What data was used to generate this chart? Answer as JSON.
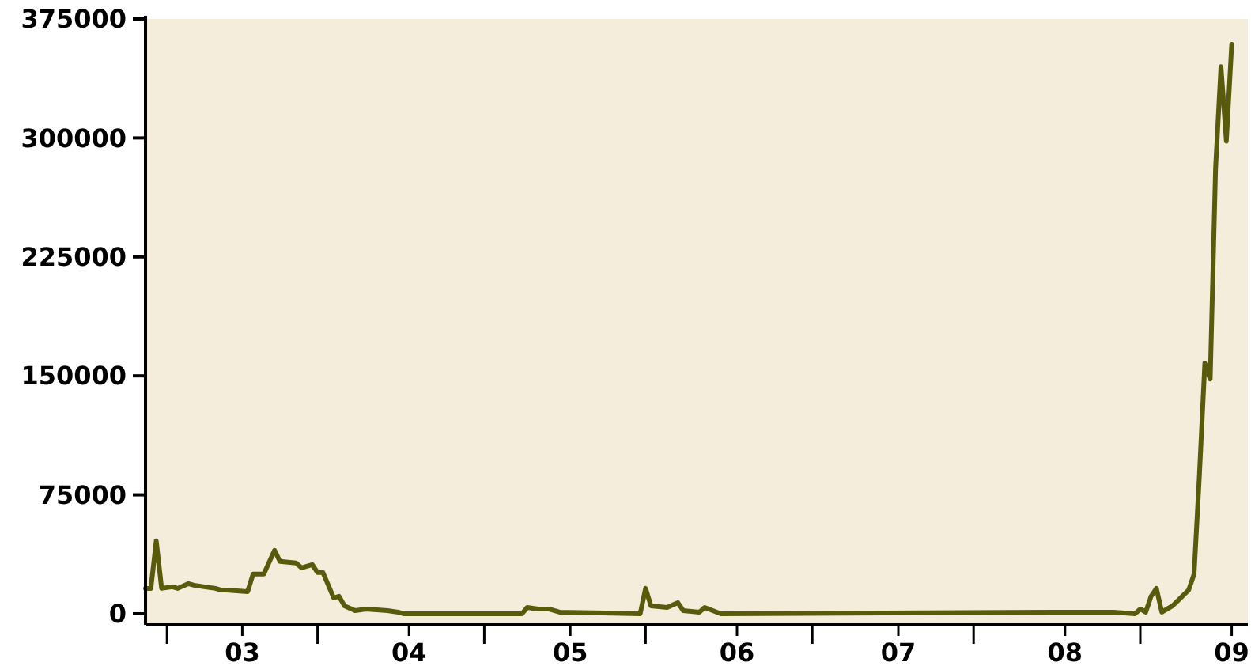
{
  "chart_data": {
    "type": "line",
    "x": [
      "--02-11",
      "--02-12",
      "--02-13",
      "--02-14",
      "--02-16",
      "--02-17",
      "--02-19",
      "--02-20",
      "--02-24",
      "--02-25",
      "--02-26",
      "--03-02",
      "--03-03",
      "--03-05",
      "--03-07",
      "--03-08",
      "--03-11",
      "--03-12",
      "--03-14",
      "--03-15",
      "--03-16",
      "--03-18",
      "--03-19",
      "--03-20",
      "--03-22",
      "--03-24",
      "--03-28",
      "--03-30",
      "--03-31",
      "--04-22",
      "--04-23",
      "--04-25",
      "--04-27",
      "--04-29",
      "--05-14",
      "--05-15",
      "--05-16",
      "--05-19",
      "--05-21",
      "--05-22",
      "--05-25",
      "--05-26",
      "--05-29",
      "--07-30",
      "--08-05",
      "--08-10",
      "--08-14",
      "--08-15",
      "--08-16",
      "--08-17",
      "--08-18",
      "--08-19",
      "--08-21",
      "--08-24",
      "--08-25",
      "--08-26",
      "--08-27",
      "--08-28",
      "--08-29",
      "--08-30",
      "--08-31",
      "--09-01"
    ],
    "series": [
      {
        "color": "#5a5a0c",
        "values": [
          16000,
          16000,
          46000,
          16000,
          17000,
          16000,
          19000,
          18000,
          16000,
          15000,
          15000,
          14000,
          25000,
          25000,
          40000,
          33000,
          32000,
          29000,
          31000,
          26000,
          26000,
          10000,
          11000,
          5000,
          2000,
          3000,
          2000,
          1000,
          0,
          0,
          4000,
          3000,
          3000,
          1000,
          0,
          16000,
          5000,
          4000,
          7000,
          2000,
          1000,
          4000,
          0,
          1000,
          1000,
          1000,
          0,
          3000,
          1000,
          11000,
          16000,
          1000,
          5000,
          15000,
          25000,
          88000,
          158000,
          148000,
          281000,
          345000,
          298000,
          359000
        ]
      }
    ],
    "xlim": [
      "--02-11",
      "--09-04"
    ],
    "xticks": [
      {
        "value": "--02-15",
        "label": null
      },
      {
        "value": "--03-01",
        "label": "03"
      },
      {
        "value": "--03-15",
        "label": null
      },
      {
        "value": "--04-01",
        "label": "04"
      },
      {
        "value": "--04-15",
        "label": null
      },
      {
        "value": "--05-01",
        "label": "05"
      },
      {
        "value": "--05-15",
        "label": null
      },
      {
        "value": "--06-01",
        "label": "06"
      },
      {
        "value": "--06-15",
        "label": null
      },
      {
        "value": "--07-01",
        "label": "07"
      },
      {
        "value": "--07-15",
        "label": null
      },
      {
        "value": "--08-01",
        "label": "08"
      },
      {
        "value": "--08-15",
        "label": null
      },
      {
        "value": "--09-01",
        "label": "09"
      }
    ],
    "ylim": [
      -7000,
      375000
    ],
    "yticks": [
      0,
      75000,
      150000,
      225000,
      300000,
      375000
    ],
    "grid": false,
    "marker": "none",
    "line_style": "solid"
  }
}
